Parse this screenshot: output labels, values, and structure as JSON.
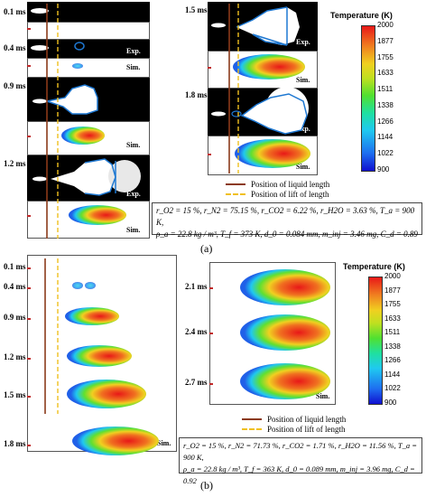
{
  "panel_a": {
    "label": "(a)",
    "left_times": [
      "0.1 ms",
      "0.4 ms",
      "0.9 ms",
      "1.2 ms"
    ],
    "right_times": [
      "1.5 ms",
      "1.8 ms"
    ],
    "exp_tag": "Exp.",
    "sim_tag": "Sim.",
    "legend": {
      "liquid": "Position of liquid length",
      "lift": "Position of lift of length"
    },
    "info_line1": "r_O2 = 15 %, r_N2 = 75.15 %, r_CO2 = 6.22 %, r_H2O = 3.63 %, T_a = 900 K,",
    "info_line2": "ρ_a = 22.8 kg / m³, T_f = 373 K, d_0 = 0.084 mm, m_inj = 3.46 mg, C_d = 0.89",
    "colorbar": {
      "title": "Temperature (K)",
      "ticks": [
        "2000",
        "1877",
        "1755",
        "1633",
        "1511",
        "1338",
        "1266",
        "1144",
        "1022",
        "900"
      ]
    }
  },
  "panel_b": {
    "label": "(b)",
    "left_times": [
      "0.1 ms",
      "0.4 ms",
      "0.9 ms",
      "1.2 ms",
      "1.5 ms",
      "1.8 ms"
    ],
    "right_times": [
      "2.1 ms",
      "2.4 ms",
      "2.7 ms"
    ],
    "sim_tag": "Sim.",
    "legend": {
      "liquid": "Position of liquid length",
      "lift": "Position of lift of length"
    },
    "info_line1": "r_O2 = 15 %, r_N2 = 71.73 %, r_CO2 = 1.71 %, r_H2O = 11.56 %, T_a = 900 K,",
    "info_line2": "ρ_a = 22.8 kg / m³, T_f = 363 K, d_0 = 0.089 mm, m_inj = 3.96 mg, C_d = 0.92",
    "colorbar": {
      "title": "Temperature (K)",
      "ticks": [
        "2000",
        "1877",
        "1755",
        "1633",
        "1511",
        "1338",
        "1266",
        "1144",
        "1022",
        "900"
      ]
    }
  },
  "colors": {
    "liquid_line": "#8b3a1a",
    "lift_line": "#f0c020",
    "outline": "#1e78d2"
  }
}
